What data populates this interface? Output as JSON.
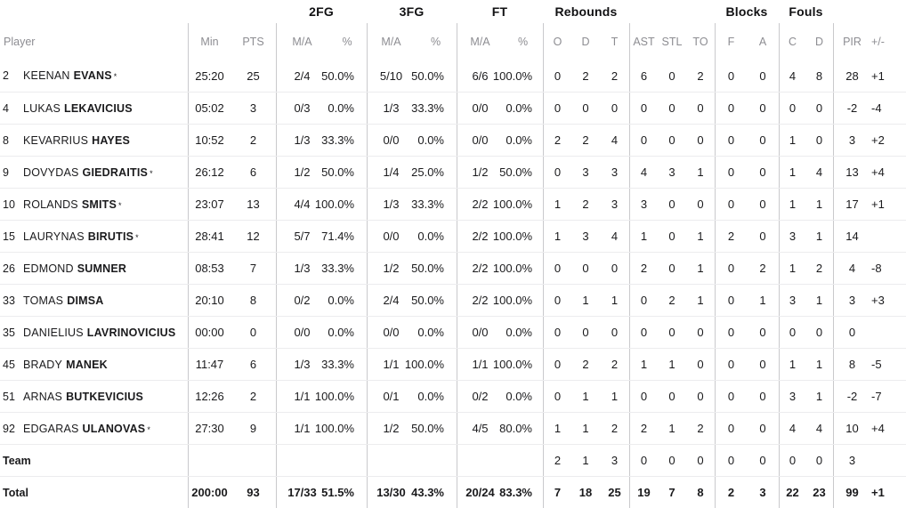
{
  "colors": {
    "text": "#1a1a1c",
    "muted_header_text": "#8d8d92",
    "column_divider": "#c9c9cc",
    "row_divider": "#ececee",
    "background": "#ffffff"
  },
  "table": {
    "group_headers": [
      "2FG",
      "3FG",
      "FT",
      "Rebounds",
      "Blocks",
      "Fouls"
    ],
    "col_headers": [
      "Player",
      "Min",
      "PTS",
      "M/A",
      "%",
      "M/A",
      "%",
      "M/A",
      "%",
      "O",
      "D",
      "T",
      "AST",
      "STL",
      "TO",
      "F",
      "A",
      "C",
      "D",
      "PIR",
      "+/-"
    ],
    "starter_mark": "*",
    "players": [
      {
        "number": "2",
        "first_name": "KEENAN",
        "last_name": "EVANS",
        "starter": true,
        "min": "25:20",
        "pts": "25",
        "fg2_ma": "2/4",
        "fg2_pct": "50.0%",
        "fg3_ma": "5/10",
        "fg3_pct": "50.0%",
        "ft_ma": "6/6",
        "ft_pct": "100.0%",
        "reb_o": "0",
        "reb_d": "2",
        "reb_t": "2",
        "ast": "6",
        "stl": "0",
        "to": "2",
        "blk_fv": "0",
        "blk_ag": "0",
        "foul_c": "4",
        "foul_d": "8",
        "pir": "28",
        "plus_minus": "+1"
      },
      {
        "number": "4",
        "first_name": "LUKAS",
        "last_name": "LEKAVICIUS",
        "starter": false,
        "min": "05:02",
        "pts": "3",
        "fg2_ma": "0/3",
        "fg2_pct": "0.0%",
        "fg3_ma": "1/3",
        "fg3_pct": "33.3%",
        "ft_ma": "0/0",
        "ft_pct": "0.0%",
        "reb_o": "0",
        "reb_d": "0",
        "reb_t": "0",
        "ast": "0",
        "stl": "0",
        "to": "0",
        "blk_fv": "0",
        "blk_ag": "0",
        "foul_c": "0",
        "foul_d": "0",
        "pir": "-2",
        "plus_minus": "-4"
      },
      {
        "number": "8",
        "first_name": "KEVARRIUS",
        "last_name": "HAYES",
        "starter": false,
        "min": "10:52",
        "pts": "2",
        "fg2_ma": "1/3",
        "fg2_pct": "33.3%",
        "fg3_ma": "0/0",
        "fg3_pct": "0.0%",
        "ft_ma": "0/0",
        "ft_pct": "0.0%",
        "reb_o": "2",
        "reb_d": "2",
        "reb_t": "4",
        "ast": "0",
        "stl": "0",
        "to": "0",
        "blk_fv": "0",
        "blk_ag": "0",
        "foul_c": "1",
        "foul_d": "0",
        "pir": "3",
        "plus_minus": "+2"
      },
      {
        "number": "9",
        "first_name": "DOVYDAS",
        "last_name": "GIEDRAITIS",
        "starter": true,
        "min": "26:12",
        "pts": "6",
        "fg2_ma": "1/2",
        "fg2_pct": "50.0%",
        "fg3_ma": "1/4",
        "fg3_pct": "25.0%",
        "ft_ma": "1/2",
        "ft_pct": "50.0%",
        "reb_o": "0",
        "reb_d": "3",
        "reb_t": "3",
        "ast": "4",
        "stl": "3",
        "to": "1",
        "blk_fv": "0",
        "blk_ag": "0",
        "foul_c": "1",
        "foul_d": "4",
        "pir": "13",
        "plus_minus": "+4"
      },
      {
        "number": "10",
        "first_name": "ROLANDS",
        "last_name": "SMITS",
        "starter": true,
        "min": "23:07",
        "pts": "13",
        "fg2_ma": "4/4",
        "fg2_pct": "100.0%",
        "fg3_ma": "1/3",
        "fg3_pct": "33.3%",
        "ft_ma": "2/2",
        "ft_pct": "100.0%",
        "reb_o": "1",
        "reb_d": "2",
        "reb_t": "3",
        "ast": "3",
        "stl": "0",
        "to": "0",
        "blk_fv": "0",
        "blk_ag": "0",
        "foul_c": "1",
        "foul_d": "1",
        "pir": "17",
        "plus_minus": "+1"
      },
      {
        "number": "15",
        "first_name": "LAURYNAS",
        "last_name": "BIRUTIS",
        "starter": true,
        "min": "28:41",
        "pts": "12",
        "fg2_ma": "5/7",
        "fg2_pct": "71.4%",
        "fg3_ma": "0/0",
        "fg3_pct": "0.0%",
        "ft_ma": "2/2",
        "ft_pct": "100.0%",
        "reb_o": "1",
        "reb_d": "3",
        "reb_t": "4",
        "ast": "1",
        "stl": "0",
        "to": "1",
        "blk_fv": "2",
        "blk_ag": "0",
        "foul_c": "3",
        "foul_d": "1",
        "pir": "14",
        "plus_minus": ""
      },
      {
        "number": "26",
        "first_name": "EDMOND",
        "last_name": "SUMNER",
        "starter": false,
        "min": "08:53",
        "pts": "7",
        "fg2_ma": "1/3",
        "fg2_pct": "33.3%",
        "fg3_ma": "1/2",
        "fg3_pct": "50.0%",
        "ft_ma": "2/2",
        "ft_pct": "100.0%",
        "reb_o": "0",
        "reb_d": "0",
        "reb_t": "0",
        "ast": "2",
        "stl": "0",
        "to": "1",
        "blk_fv": "0",
        "blk_ag": "2",
        "foul_c": "1",
        "foul_d": "2",
        "pir": "4",
        "plus_minus": "-8"
      },
      {
        "number": "33",
        "first_name": "TOMAS",
        "last_name": "DIMSA",
        "starter": false,
        "min": "20:10",
        "pts": "8",
        "fg2_ma": "0/2",
        "fg2_pct": "0.0%",
        "fg3_ma": "2/4",
        "fg3_pct": "50.0%",
        "ft_ma": "2/2",
        "ft_pct": "100.0%",
        "reb_o": "0",
        "reb_d": "1",
        "reb_t": "1",
        "ast": "0",
        "stl": "2",
        "to": "1",
        "blk_fv": "0",
        "blk_ag": "1",
        "foul_c": "3",
        "foul_d": "1",
        "pir": "3",
        "plus_minus": "+3"
      },
      {
        "number": "35",
        "first_name": "DANIELIUS",
        "last_name": "LAVRINOVICIUS",
        "starter": false,
        "min": "00:00",
        "pts": "0",
        "fg2_ma": "0/0",
        "fg2_pct": "0.0%",
        "fg3_ma": "0/0",
        "fg3_pct": "0.0%",
        "ft_ma": "0/0",
        "ft_pct": "0.0%",
        "reb_o": "0",
        "reb_d": "0",
        "reb_t": "0",
        "ast": "0",
        "stl": "0",
        "to": "0",
        "blk_fv": "0",
        "blk_ag": "0",
        "foul_c": "0",
        "foul_d": "0",
        "pir": "0",
        "plus_minus": ""
      },
      {
        "number": "45",
        "first_name": "BRADY",
        "last_name": "MANEK",
        "starter": false,
        "min": "11:47",
        "pts": "6",
        "fg2_ma": "1/3",
        "fg2_pct": "33.3%",
        "fg3_ma": "1/1",
        "fg3_pct": "100.0%",
        "ft_ma": "1/1",
        "ft_pct": "100.0%",
        "reb_o": "0",
        "reb_d": "2",
        "reb_t": "2",
        "ast": "1",
        "stl": "1",
        "to": "0",
        "blk_fv": "0",
        "blk_ag": "0",
        "foul_c": "1",
        "foul_d": "1",
        "pir": "8",
        "plus_minus": "-5"
      },
      {
        "number": "51",
        "first_name": "ARNAS",
        "last_name": "BUTKEVICIUS",
        "starter": false,
        "min": "12:26",
        "pts": "2",
        "fg2_ma": "1/1",
        "fg2_pct": "100.0%",
        "fg3_ma": "0/1",
        "fg3_pct": "0.0%",
        "ft_ma": "0/2",
        "ft_pct": "0.0%",
        "reb_o": "0",
        "reb_d": "1",
        "reb_t": "1",
        "ast": "0",
        "stl": "0",
        "to": "0",
        "blk_fv": "0",
        "blk_ag": "0",
        "foul_c": "3",
        "foul_d": "1",
        "pir": "-2",
        "plus_minus": "-7"
      },
      {
        "number": "92",
        "first_name": "EDGARAS",
        "last_name": "ULANOVAS",
        "starter": true,
        "min": "27:30",
        "pts": "9",
        "fg2_ma": "1/1",
        "fg2_pct": "100.0%",
        "fg3_ma": "1/2",
        "fg3_pct": "50.0%",
        "ft_ma": "4/5",
        "ft_pct": "80.0%",
        "reb_o": "1",
        "reb_d": "1",
        "reb_t": "2",
        "ast": "2",
        "stl": "1",
        "to": "2",
        "blk_fv": "0",
        "blk_ag": "0",
        "foul_c": "4",
        "foul_d": "4",
        "pir": "10",
        "plus_minus": "+4"
      }
    ],
    "team": {
      "label": "Team",
      "min": "",
      "pts": "",
      "fg2_ma": "",
      "fg2_pct": "",
      "fg3_ma": "",
      "fg3_pct": "",
      "ft_ma": "",
      "ft_pct": "",
      "reb_o": "2",
      "reb_d": "1",
      "reb_t": "3",
      "ast": "0",
      "stl": "0",
      "to": "0",
      "blk_fv": "0",
      "blk_ag": "0",
      "foul_c": "0",
      "foul_d": "0",
      "pir": "3",
      "plus_minus": ""
    },
    "total": {
      "label": "Total",
      "min": "200:00",
      "pts": "93",
      "fg2_ma": "17/33",
      "fg2_pct": "51.5%",
      "fg3_ma": "13/30",
      "fg3_pct": "43.3%",
      "ft_ma": "20/24",
      "ft_pct": "83.3%",
      "reb_o": "7",
      "reb_d": "18",
      "reb_t": "25",
      "ast": "19",
      "stl": "7",
      "to": "8",
      "blk_fv": "2",
      "blk_ag": "3",
      "foul_c": "22",
      "foul_d": "23",
      "pir": "99",
      "plus_minus": "+1"
    }
  }
}
